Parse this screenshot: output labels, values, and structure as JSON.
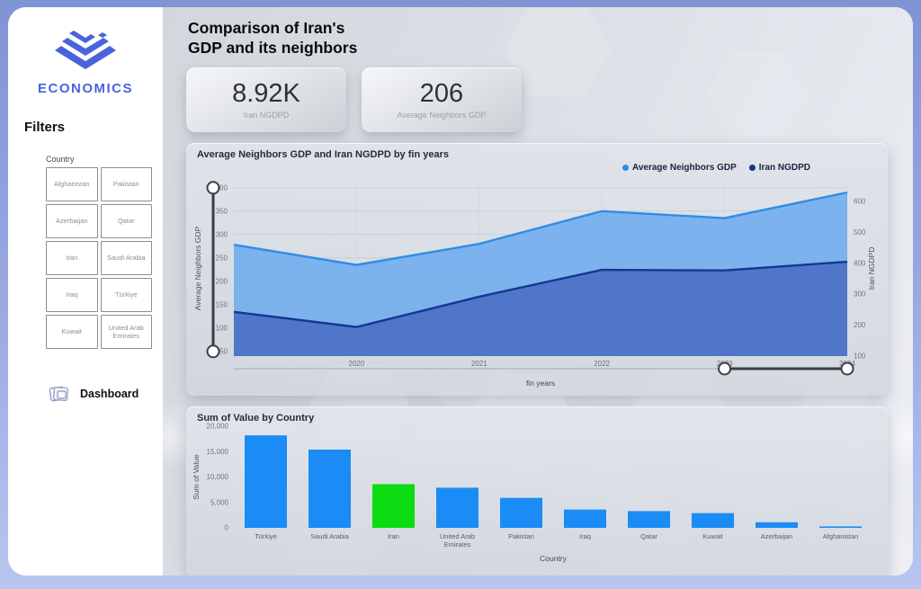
{
  "header": {
    "title_line1": "Comparison of Iran's",
    "title_line2": "GDP and its neighbors"
  },
  "sidebar": {
    "logo_text": "ECONOMICS",
    "filters_title": "Filters",
    "country_label": "Country",
    "countries": [
      "Afghanistan",
      "Pakistan",
      "Azerbaijan",
      "Qatar",
      "Iran",
      "Saudi Arabia",
      "Iraq",
      "Türkiye",
      "Kuwait",
      "United Arab Emirates"
    ],
    "dashboard_label": "Dashboard"
  },
  "kpis": [
    {
      "value": "8.92K",
      "label": "Iran NGDPD"
    },
    {
      "value": "206",
      "label": "Average Neighbors GDP"
    }
  ],
  "colors": {
    "logo_blue": "#4a63dd",
    "bar_blue": "#1b8cf5",
    "iran_green": "#0ddc12",
    "area_light_fill": "#79b1ec",
    "area_light_line": "#2e8de8",
    "area_dark_fill": "#4d74c6",
    "area_dark_line": "#16368f",
    "frame_top": "#8093d5",
    "frame_bottom": "#b9c5f0"
  },
  "chart_data": [
    {
      "type": "area",
      "title": "Average Neighbors GDP and Iran NGDPD by fin years",
      "xlabel": "fin years",
      "x": [
        2019,
        2020,
        2021,
        2022,
        2023,
        2024
      ],
      "x_tick_labels": [
        "2020",
        "2021",
        "2022",
        "2023",
        "2024"
      ],
      "left_axis": {
        "label": "Average Neighbors GDP",
        "ticks": [
          50,
          100,
          150,
          200,
          250,
          300,
          350,
          400
        ],
        "range": [
          40,
          415
        ]
      },
      "right_axis": {
        "label": "Iran NGDPD",
        "ticks": [
          100,
          200,
          300,
          400,
          500,
          600
        ],
        "range": [
          100,
          667
        ]
      },
      "legend": [
        {
          "label": "Average Neighbors GDP",
          "color": "#2e8de8"
        },
        {
          "label": "Iran NGDPD",
          "color": "#16368f"
        }
      ],
      "series": [
        {
          "name": "Average Neighbors GDP",
          "axis": "left",
          "values": [
            278,
            235,
            280,
            350,
            335,
            390
          ],
          "line_color": "#2e8de8",
          "fill_color": "#79b1ec"
        },
        {
          "name": "Iran NGDPD",
          "axis": "right",
          "values": [
            243,
            194,
            292,
            379,
            377,
            405
          ],
          "line_color": "#16368f",
          "fill_color": "#4d74c6"
        }
      ],
      "sliders": {
        "vertical_range": [
          50,
          400
        ],
        "horizontal_selected_range": [
          "2023",
          "2024"
        ]
      }
    },
    {
      "type": "bar",
      "title": "Sum of Value by Country",
      "xlabel": "Country",
      "ylabel": "Sum of Value",
      "ylim": [
        0,
        20000
      ],
      "ytick_values": [
        0,
        5000,
        10000,
        15000,
        20000
      ],
      "ytick_labels": [
        "0",
        "5,000",
        "10,000",
        "15,000",
        "20,000"
      ],
      "categories": [
        "Türkiye",
        "Saudi Arabia",
        "Iran",
        "United Arab Emirates",
        "Pakistan",
        "Iraq",
        "Qatar",
        "Kuwait",
        "Azerbaijan",
        "Afghanistan"
      ],
      "values": [
        18200,
        15400,
        8600,
        7900,
        5900,
        3600,
        3300,
        2900,
        1100,
        200
      ],
      "highlight_category": "Iran",
      "bar_color": "#1b8cf5",
      "highlight_color": "#0ddc12"
    }
  ]
}
